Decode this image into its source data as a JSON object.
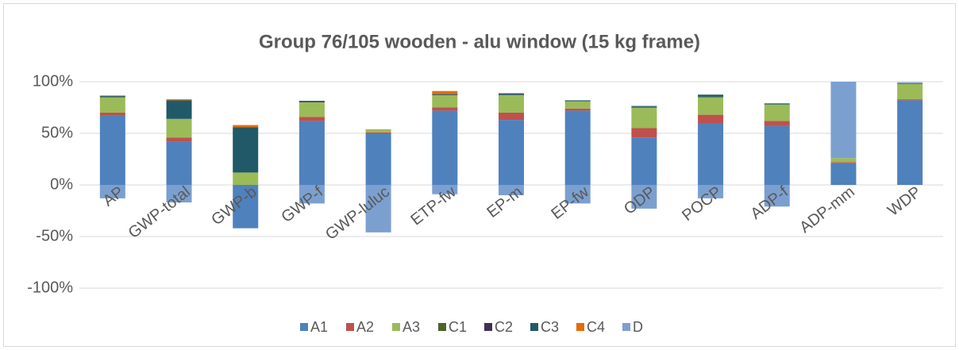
{
  "chart_data": {
    "type": "stacked_bar",
    "title": "Group 76/105 wooden - alu window (15 kg frame)",
    "categories": [
      "AP",
      "GWP-total",
      "GWP-b",
      "GWP-f",
      "GWP-luluc",
      "ETP-fw",
      "EP-m",
      "EP-fw",
      "ODP",
      "POCP",
      "ADP-f",
      "ADP-mm",
      "WDP"
    ],
    "series": [
      {
        "name": "A1",
        "color": "#4f81bd",
        "values": [
          67,
          42,
          -42,
          62,
          50,
          72,
          63,
          72,
          46,
          60,
          57,
          21,
          82
        ]
      },
      {
        "name": "A2",
        "color": "#c0504d",
        "values": [
          3,
          4,
          0,
          4,
          1,
          3,
          7,
          2,
          9,
          8,
          5,
          1,
          1
        ]
      },
      {
        "name": "A3",
        "color": "#9bbb59",
        "values": [
          15,
          18,
          12,
          14,
          3,
          12,
          17,
          7,
          20,
          17,
          16,
          4,
          15
        ]
      },
      {
        "name": "C1",
        "color": "#4f6228",
        "values": [
          0,
          0,
          0,
          0,
          0,
          0,
          0,
          0,
          0,
          0,
          0,
          0,
          0
        ]
      },
      {
        "name": "C2",
        "color": "#403152",
        "values": [
          0.5,
          0,
          0,
          0.5,
          0,
          0,
          0.5,
          0,
          0.5,
          0.5,
          0,
          0,
          0
        ]
      },
      {
        "name": "C3",
        "color": "#215968",
        "values": [
          1,
          18,
          44,
          1,
          0,
          1,
          1,
          1,
          1,
          2,
          1,
          0,
          0.5
        ]
      },
      {
        "name": "C4",
        "color": "#e46c0a",
        "values": [
          0,
          1,
          2,
          0,
          0,
          3,
          0.5,
          0,
          0,
          0,
          0,
          0,
          0
        ]
      },
      {
        "name": "D",
        "color": "#7ba0d0",
        "values": [
          -13,
          -17,
          0,
          -18,
          -46,
          -9,
          -10,
          -18,
          -23,
          -13,
          -21,
          74,
          1
        ]
      }
    ],
    "ylim": [
      -100,
      100
    ],
    "yticks": [
      {
        "value": -100,
        "label": "-100%"
      },
      {
        "value": -50,
        "label": "-50%"
      },
      {
        "value": 0,
        "label": "0%"
      },
      {
        "value": 50,
        "label": "50%"
      },
      {
        "value": 100,
        "label": "100%"
      }
    ],
    "grid": true,
    "legend": "bottom"
  }
}
